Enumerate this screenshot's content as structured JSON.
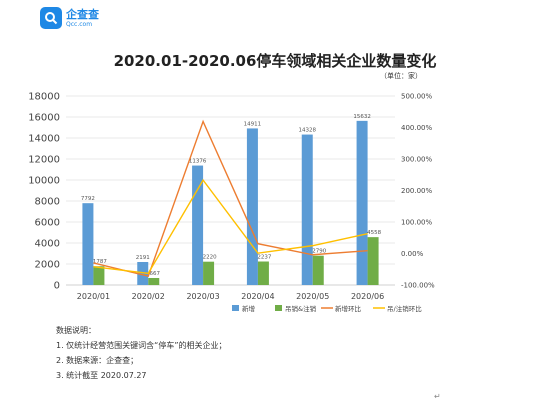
{
  "brand": {
    "name": "企查查",
    "domain": "Qcc.com"
  },
  "chart_data": {
    "type": "bar",
    "title": "2020.01-2020.06停车领域相关企业数量变化",
    "unit_label": "（单位：家）",
    "categories": [
      "2020/01",
      "2020/02",
      "2020/03",
      "2020/04",
      "2020/05",
      "2020/06"
    ],
    "series": [
      {
        "name": "新增",
        "type": "bar",
        "axis": "left",
        "color": "#5b9bd5",
        "values": [
          7792,
          2191,
          11376,
          14911,
          14328,
          15632
        ]
      },
      {
        "name": "吊销&注销",
        "type": "bar",
        "axis": "left",
        "color": "#70ad47",
        "values": [
          1787,
          667,
          2220,
          2237,
          2790,
          4558
        ]
      },
      {
        "name": "新增环比",
        "type": "line",
        "axis": "right",
        "color": "#ed7d31",
        "values": [
          -30,
          -72,
          419,
          31,
          -4,
          9
        ]
      },
      {
        "name": "吊/注销环比",
        "type": "line",
        "axis": "right",
        "color": "#ffc000",
        "values": [
          -42,
          -63,
          233,
          1,
          25,
          63
        ]
      }
    ],
    "left_axis": {
      "ylim": [
        0,
        18000
      ],
      "ticks": [
        "0",
        "2000",
        "4000",
        "6000",
        "8000",
        "10000",
        "12000",
        "14000",
        "16000",
        "18000"
      ]
    },
    "right_axis": {
      "ylim": [
        -100,
        500
      ],
      "ticks": [
        "-100.00%",
        "0.00%",
        "100.00%",
        "200.00%",
        "300.00%",
        "400.00%",
        "500.00%"
      ]
    },
    "bar_labels_new": [
      "7792",
      "2191",
      "11376",
      "14911",
      "14328",
      "15632"
    ],
    "bar_labels_cancel": [
      "1787",
      "667",
      "2220",
      "2237",
      "2790",
      "4558"
    ],
    "legend_position": "bottom-center"
  },
  "notes": {
    "heading": "数据说明：",
    "items": [
      "1. 仅统计经营范围关键词含“停车”的相关企业；",
      "2. 数据来源：企查查；",
      "3. 统计截至 2020.07.27"
    ]
  },
  "return_mark": "↵"
}
